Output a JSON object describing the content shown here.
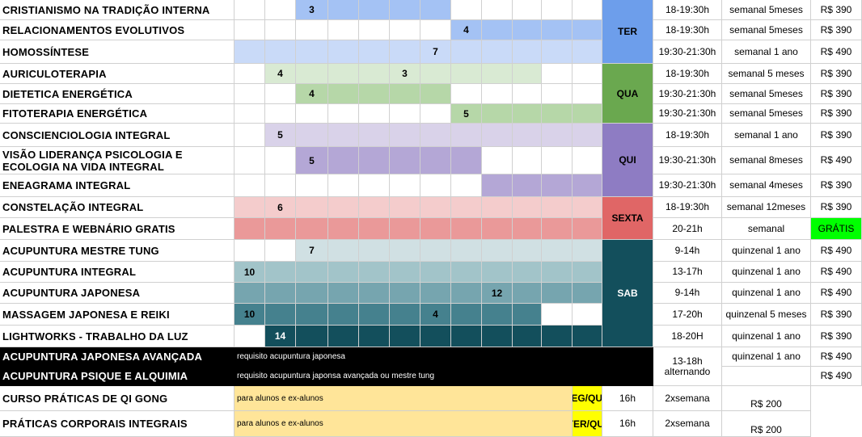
{
  "rows": [
    {
      "name": "CRISTIANISMO NA TRADIÇÃO INTERNA",
      "start": 2,
      "end": 6,
      "bar": "#a4c2f4",
      "labels": [
        {
          "c": 2,
          "t": "3"
        }
      ],
      "time": "18-19:30h",
      "freq": "semanal 5meses",
      "price": "R$ 390"
    },
    {
      "name": "RELACIONAMENTOS EVOLUTIVOS",
      "start": 7,
      "end": 11,
      "bar": "#a4c2f4",
      "labels": [
        {
          "c": 7,
          "t": "4"
        }
      ],
      "time": "18-19:30h",
      "freq": "semanal 5meses",
      "price": "R$ 390"
    },
    {
      "name": "HOMOSSÍNTESE",
      "start": 0,
      "end": 11,
      "bar": "#c9daf8",
      "labels": [
        {
          "c": 6,
          "t": "7"
        }
      ],
      "time": "19:30-21:30h",
      "freq": "semanal 1 ano",
      "price": "R$ 490"
    },
    {
      "name": "AURICULOTERAPIA",
      "start": 1,
      "end": 9,
      "bar": "#d9ead3",
      "labels": [
        {
          "c": 1,
          "t": "4"
        },
        {
          "c": 5,
          "t": "3"
        }
      ],
      "time": "18-19:30h",
      "freq": "semanal 5 meses",
      "price": "R$ 390"
    },
    {
      "name": "DIETETICA ENERGÉTICA",
      "start": 2,
      "end": 6,
      "bar": "#b6d7a8",
      "labels": [
        {
          "c": 2,
          "t": "4"
        }
      ],
      "time": "19:30-21:30h",
      "freq": "semanal 5meses",
      "price": "R$ 390"
    },
    {
      "name": "FITOTERAPIA ENERGÉTICA",
      "start": 7,
      "end": 11,
      "bar": "#b6d7a8",
      "labels": [
        {
          "c": 7,
          "t": "5"
        }
      ],
      "time": "19:30-21:30h",
      "freq": "semanal 5meses",
      "price": "R$ 390"
    },
    {
      "name": "CONSCIENCIOLOGIA INTEGRAL",
      "start": 1,
      "end": 11,
      "bar": "#d9d2e9",
      "labels": [
        {
          "c": 1,
          "t": "5"
        }
      ],
      "time": "18-19:30h",
      "freq": "semanal 1 ano",
      "price": "R$ 390"
    },
    {
      "name": "VISÃO LIDERANÇA PSICOLOGIA E ECOLOGIA NA VIDA INTEGRAL",
      "start": 2,
      "end": 7,
      "bar": "#b4a7d6",
      "labels": [
        {
          "c": 2,
          "t": "5"
        }
      ],
      "time": "19:30-21:30h",
      "freq": "semanal 8meses",
      "price": "R$ 490"
    },
    {
      "name": "ENEAGRAMA INTEGRAL",
      "start": 8,
      "end": 11,
      "bar": "#b4a7d6",
      "labels": [],
      "time": "19:30-21:30h",
      "freq": "semanal 4meses",
      "price": "R$ 390"
    },
    {
      "name": "CONSTELAÇÃO INTEGRAL",
      "start": 0,
      "end": 11,
      "bar": "#f4cccc",
      "labels": [
        {
          "c": 1,
          "t": "6"
        }
      ],
      "time": "18-19:30h",
      "freq": "semanal 12meses",
      "price": "R$ 390"
    },
    {
      "name": "PALESTRA E WEBNÁRIO GRATIS",
      "start": 0,
      "end": 11,
      "bar": "#ea9999",
      "labels": [],
      "time": "20-21h",
      "freq": "semanal",
      "price": "GRÁTIS"
    },
    {
      "name": "ACUPUNTURA MESTRE TUNG",
      "start": 2,
      "end": 11,
      "bar": "#d0e0e3",
      "labels": [
        {
          "c": 2,
          "t": "7"
        }
      ],
      "time": "9-14h",
      "freq": "quinzenal 1 ano",
      "price": "R$ 490"
    },
    {
      "name": "ACUPUNTURA INTEGRAL",
      "start": 0,
      "end": 11,
      "bar": "#a2c4c9",
      "labels": [
        {
          "c": 0,
          "t": "10"
        }
      ],
      "time": "13-17h",
      "freq": "quinzenal 1 ano",
      "price": "R$ 490"
    },
    {
      "name": "ACUPUNTURA JAPONESA",
      "start": 0,
      "end": 11,
      "bar": "#76a5af",
      "labels": [
        {
          "c": 8,
          "t": "12"
        }
      ],
      "time": "9-14h",
      "freq": "quinzenal 1 ano",
      "price": "R$ 490"
    },
    {
      "name": "MASSAGEM JAPONESA E REIKI",
      "start": 0,
      "end": 9,
      "bar": "#45818e",
      "labels": [
        {
          "c": 0,
          "t": "10"
        },
        {
          "c": 6,
          "t": "4"
        }
      ],
      "time": "17-20h",
      "freq": "quinzenal 5 meses",
      "price": "R$ 390"
    },
    {
      "name": "LIGHTWORKS - TRABALHO DA LUZ",
      "start": 1,
      "end": 11,
      "bar": "#134f5c",
      "labels": [
        {
          "c": 1,
          "t": "14"
        }
      ],
      "time": "18-20H",
      "freq": "quinzenal 1 ano",
      "price": "R$ 390"
    }
  ],
  "days": [
    {
      "label": "TER",
      "from": 0,
      "to": 2,
      "color": "#6d9eeb"
    },
    {
      "label": "QUA",
      "from": 3,
      "to": 5,
      "color": "#6aa84f"
    },
    {
      "label": "QUI",
      "from": 6,
      "to": 8,
      "color": "#8e7cc3"
    },
    {
      "label": "SEXTA",
      "from": 9,
      "to": 10,
      "color": "#e06666"
    },
    {
      "label": "SAB",
      "from": 11,
      "to": 15,
      "color": "#134f5c"
    }
  ],
  "advanced": {
    "rows": [
      {
        "name": "ACUPUNTURA JAPONESA AVANÇADA",
        "note": "requisito acupuntura japonesa",
        "price": "R$ 490"
      },
      {
        "name": "ACUPUNTURA PSIQUE E ALQUIMIA",
        "note": "requisito acupuntura japonsa avançada ou mestre tung",
        "price": "R$ 490"
      }
    ],
    "time": "13-18h alternando",
    "freq": "quinzenal 1 ano"
  },
  "practices": [
    {
      "name": "CURSO PRÁTICAS DE QI GONG",
      "note": "para alunos e ex-alunos",
      "day": "SEG/QUA",
      "time": "16h",
      "freq": "2xsemana",
      "price": "R$ 200"
    },
    {
      "name": "PRÁTICAS CORPORAIS INTEGRAIS",
      "note": "para alunos e ex-alunos",
      "day": "TER/QUI",
      "time": "16h",
      "freq": "2xsemana",
      "price": "R$ 200"
    }
  ],
  "colors": {
    "free_price_bg": "#00ff00",
    "practice_note_bg": "#ffe599",
    "day_yellow": "#ffff00",
    "advanced_bg": "#000000"
  }
}
